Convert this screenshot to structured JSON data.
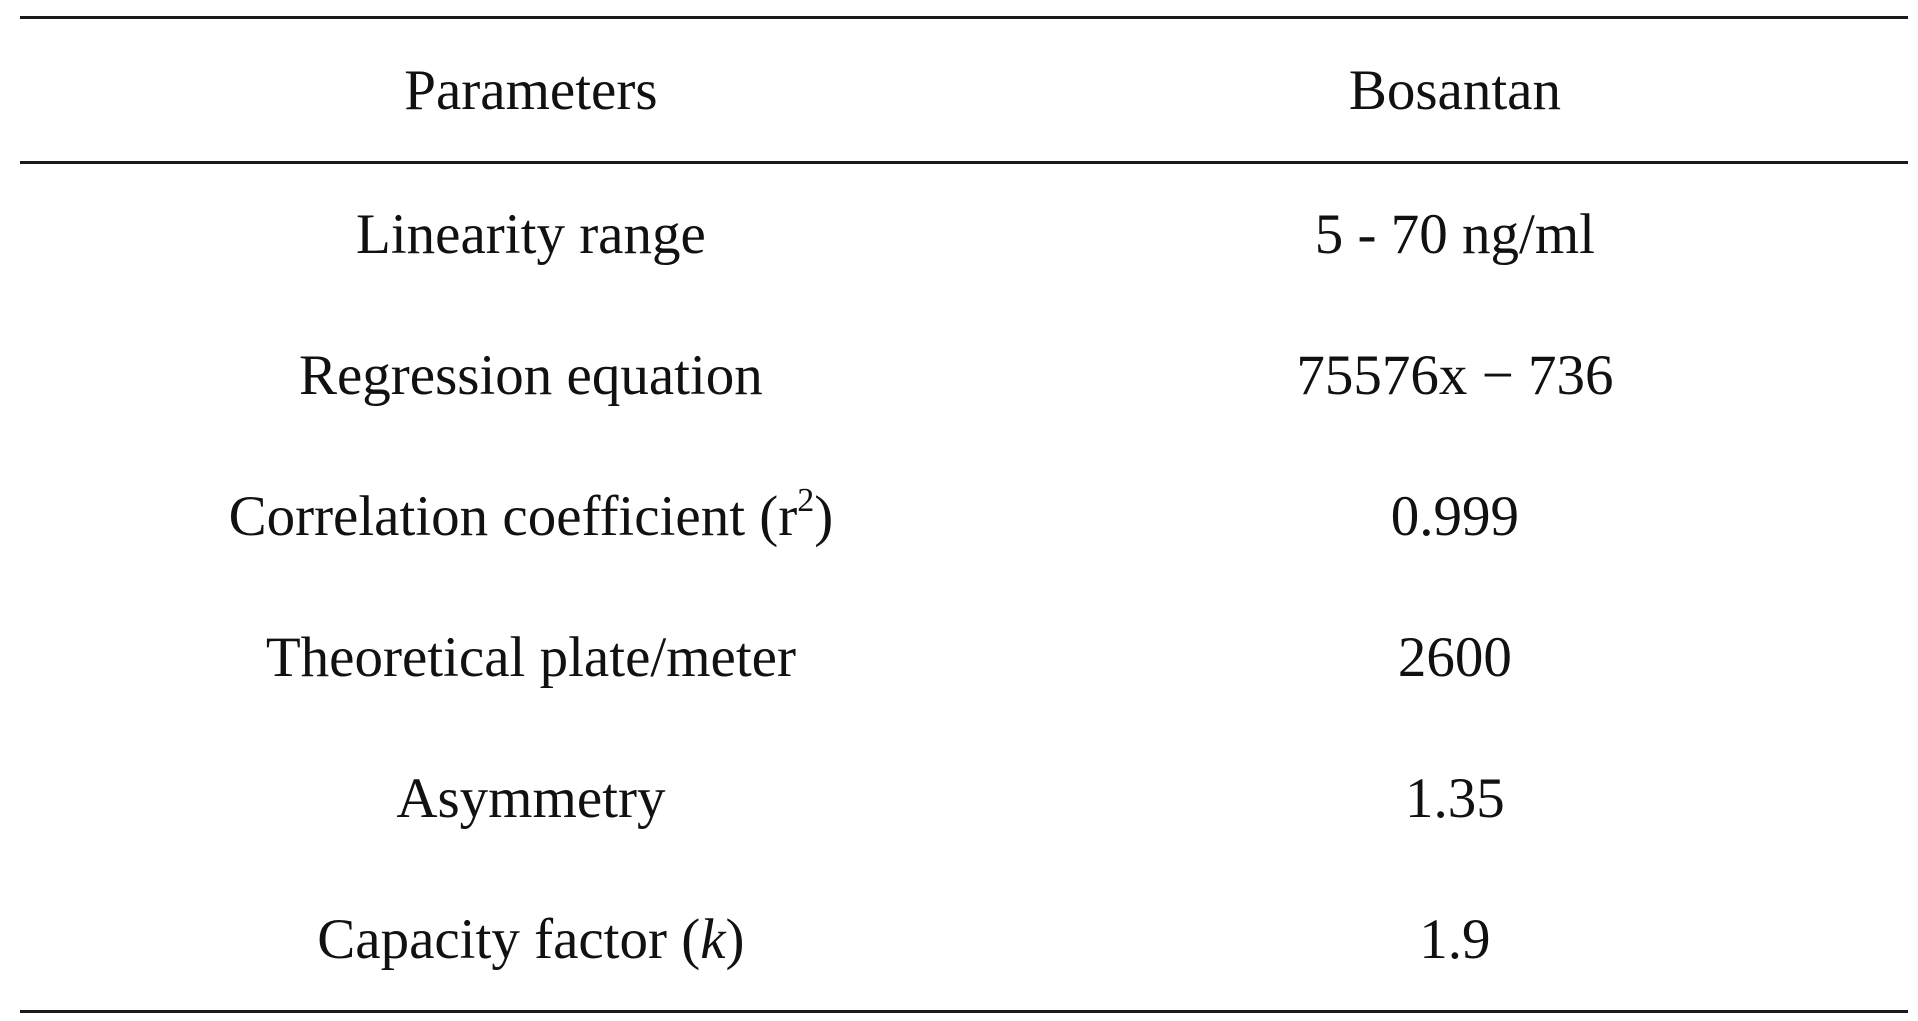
{
  "table": {
    "headers": {
      "param": "Parameters",
      "value": "Bosantan"
    },
    "rows": [
      {
        "param": "Linearity range",
        "value": "5 - 70 ng/ml"
      },
      {
        "param": "Regression equation",
        "value": "75576x − 736"
      },
      {
        "param_prefix": "Correlation coefficient (r",
        "param_sup": "2",
        "param_suffix": ")",
        "value": "0.999"
      },
      {
        "param": "Theoretical plate/meter",
        "value": "2600"
      },
      {
        "param": "Asymmetry",
        "value": "1.35"
      },
      {
        "param_prefix": "Capacity factor (",
        "param_italic": "k",
        "param_suffix": ")",
        "value": "1.9"
      }
    ]
  }
}
